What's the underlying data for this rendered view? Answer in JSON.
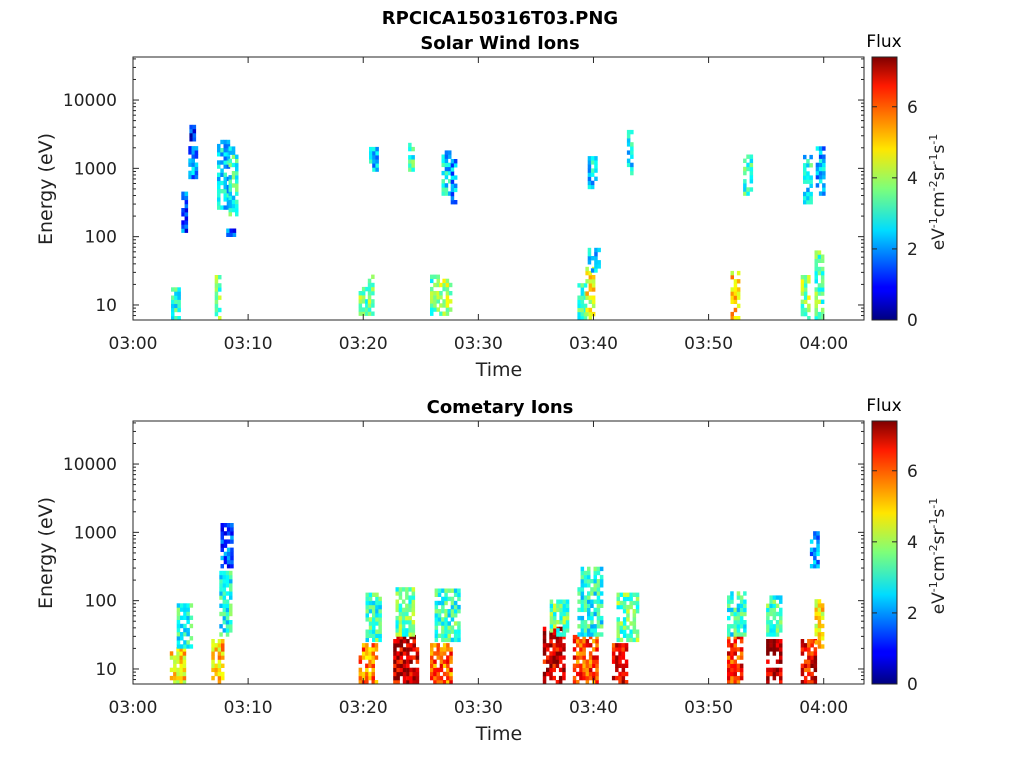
{
  "figure_title": "RPCICA150316T03.PNG",
  "colorbar": {
    "title": "Flux",
    "unit_base": "eV",
    "unit_e1": "-1",
    "unit_cm": "cm",
    "unit_e2": "-2",
    "unit_sr": "sr",
    "unit_e3": "-1",
    "unit_s": "s",
    "unit_e4": "-1",
    "range": [
      0,
      7.4
    ],
    "ticks": [
      {
        "v": 0,
        "label": "0"
      },
      {
        "v": 2,
        "label": "2"
      },
      {
        "v": 4,
        "label": "4"
      },
      {
        "v": 6,
        "label": "6"
      }
    ],
    "colormap": "jet"
  },
  "chart_data": [
    {
      "type": "heatmap",
      "title": "Solar Wind Ions",
      "xlabel": "Time",
      "ylabel": "Energy (eV)",
      "xlim_minutes": [
        0,
        63.5
      ],
      "ylim_log10": [
        0.78,
        4.63
      ],
      "yscale": "log",
      "x_ticks": [
        {
          "v": 0,
          "label": "03:00"
        },
        {
          "v": 10,
          "label": "03:10"
        },
        {
          "v": 20,
          "label": "03:20"
        },
        {
          "v": 30,
          "label": "03:30"
        },
        {
          "v": 40,
          "label": "03:40"
        },
        {
          "v": 50,
          "label": "03:50"
        },
        {
          "v": 60,
          "label": "04:00"
        }
      ],
      "y_ticks": [
        {
          "v": 10,
          "label": "10"
        },
        {
          "v": 100,
          "label": "100"
        },
        {
          "v": 1000,
          "label": "1000"
        },
        {
          "v": 10000,
          "label": "10000"
        }
      ],
      "bursts": [
        {
          "t0": 3.3,
          "t1": 4.0,
          "e_lo": 6,
          "e_hi": 18,
          "flux": 3.0
        },
        {
          "t0": 4.2,
          "t1": 4.5,
          "e_lo": 100,
          "e_hi": 500,
          "flux": 1.5
        },
        {
          "t0": 4.8,
          "t1": 5.6,
          "e_lo": 700,
          "e_hi": 2000,
          "flux": 2.0
        },
        {
          "t0": 4.9,
          "t1": 5.3,
          "e_lo": 2500,
          "e_hi": 3800,
          "flux": 1.0
        },
        {
          "t0": 7.1,
          "t1": 7.6,
          "e_lo": 6,
          "e_hi": 25,
          "flux": 3.5
        },
        {
          "t0": 7.3,
          "t1": 8.2,
          "e_lo": 250,
          "e_hi": 2500,
          "flux": 2.5
        },
        {
          "t0": 8.3,
          "t1": 8.9,
          "e_lo": 200,
          "e_hi": 2000,
          "flux": 3.0
        },
        {
          "t0": 8.1,
          "t1": 8.8,
          "e_lo": 100,
          "e_hi": 130,
          "flux": 1.5
        },
        {
          "t0": 19.6,
          "t1": 20.4,
          "e_lo": 7,
          "e_hi": 18,
          "flux": 3.5
        },
        {
          "t0": 20.4,
          "t1": 20.9,
          "e_lo": 7,
          "e_hi": 25,
          "flux": 3.8
        },
        {
          "t0": 20.5,
          "t1": 21.1,
          "e_lo": 900,
          "e_hi": 1800,
          "flux": 2.5
        },
        {
          "t0": 23.9,
          "t1": 24.3,
          "e_lo": 900,
          "e_hi": 2200,
          "flux": 3.2
        },
        {
          "t0": 25.8,
          "t1": 26.6,
          "e_lo": 7,
          "e_hi": 25,
          "flux": 3.5
        },
        {
          "t0": 26.6,
          "t1": 27.5,
          "e_lo": 7,
          "e_hi": 22,
          "flux": 4.0
        },
        {
          "t0": 26.8,
          "t1": 27.6,
          "e_lo": 400,
          "e_hi": 1800,
          "flux": 2.5
        },
        {
          "t0": 27.6,
          "t1": 28.0,
          "e_lo": 300,
          "e_hi": 1200,
          "flux": 2.0
        },
        {
          "t0": 38.6,
          "t1": 39.4,
          "e_lo": 6,
          "e_hi": 20,
          "flux": 3.2
        },
        {
          "t0": 39.3,
          "t1": 40.0,
          "e_lo": 6,
          "e_hi": 35,
          "flux": 4.5
        },
        {
          "t0": 39.5,
          "t1": 40.4,
          "e_lo": 30,
          "e_hi": 60,
          "flux": 2.5
        },
        {
          "t0": 39.5,
          "t1": 40.3,
          "e_lo": 500,
          "e_hi": 1500,
          "flux": 2.5
        },
        {
          "t0": 42.9,
          "t1": 43.4,
          "e_lo": 800,
          "e_hi": 3500,
          "flux": 2.8
        },
        {
          "t0": 51.9,
          "t1": 52.6,
          "e_lo": 6,
          "e_hi": 28,
          "flux": 4.8
        },
        {
          "t0": 53.0,
          "t1": 53.6,
          "e_lo": 400,
          "e_hi": 1500,
          "flux": 3.0
        },
        {
          "t0": 58.0,
          "t1": 58.7,
          "e_lo": 6,
          "e_hi": 25,
          "flux": 3.8
        },
        {
          "t0": 58.2,
          "t1": 59.0,
          "e_lo": 300,
          "e_hi": 1500,
          "flux": 2.8
        },
        {
          "t0": 59.2,
          "t1": 59.8,
          "e_lo": 6,
          "e_hi": 60,
          "flux": 3.5
        },
        {
          "t0": 59.3,
          "t1": 59.9,
          "e_lo": 400,
          "e_hi": 2000,
          "flux": 2.2
        }
      ]
    },
    {
      "type": "heatmap",
      "title": "Cometary Ions",
      "xlabel": "Time",
      "ylabel": "Energy (eV)",
      "xlim_minutes": [
        0,
        63.5
      ],
      "ylim_log10": [
        0.78,
        4.63
      ],
      "yscale": "log",
      "x_ticks": [
        {
          "v": 0,
          "label": "03:00"
        },
        {
          "v": 10,
          "label": "03:10"
        },
        {
          "v": 20,
          "label": "03:20"
        },
        {
          "v": 30,
          "label": "03:30"
        },
        {
          "v": 40,
          "label": "03:40"
        },
        {
          "v": 50,
          "label": "03:50"
        },
        {
          "v": 60,
          "label": "04:00"
        }
      ],
      "y_ticks": [
        {
          "v": 10,
          "label": "10"
        },
        {
          "v": 100,
          "label": "100"
        },
        {
          "v": 1000,
          "label": "1000"
        },
        {
          "v": 10000,
          "label": "10000"
        }
      ],
      "bursts": [
        {
          "t0": 3.2,
          "t1": 4.4,
          "e_lo": 6,
          "e_hi": 20,
          "flux": 4.8
        },
        {
          "t0": 3.8,
          "t1": 5.2,
          "e_lo": 20,
          "e_hi": 90,
          "flux": 3.0
        },
        {
          "t0": 6.8,
          "t1": 7.8,
          "e_lo": 6,
          "e_hi": 25,
          "flux": 5.0
        },
        {
          "t0": 7.5,
          "t1": 8.6,
          "e_lo": 30,
          "e_hi": 250,
          "flux": 3.0
        },
        {
          "t0": 7.6,
          "t1": 8.5,
          "e_lo": 300,
          "e_hi": 1300,
          "flux": 1.5
        },
        {
          "t0": 19.6,
          "t1": 21.2,
          "e_lo": 6,
          "e_hi": 22,
          "flux": 5.5
        },
        {
          "t0": 20.2,
          "t1": 21.6,
          "e_lo": 25,
          "e_hi": 120,
          "flux": 3.2
        },
        {
          "t0": 22.6,
          "t1": 24.6,
          "e_lo": 6,
          "e_hi": 30,
          "flux": 6.8
        },
        {
          "t0": 22.8,
          "t1": 24.4,
          "e_lo": 30,
          "e_hi": 150,
          "flux": 3.5
        },
        {
          "t0": 25.8,
          "t1": 27.6,
          "e_lo": 6,
          "e_hi": 22,
          "flux": 5.8
        },
        {
          "t0": 26.2,
          "t1": 28.2,
          "e_lo": 25,
          "e_hi": 140,
          "flux": 3.2
        },
        {
          "t0": 35.6,
          "t1": 37.4,
          "e_lo": 6,
          "e_hi": 40,
          "flux": 6.8
        },
        {
          "t0": 36.2,
          "t1": 37.8,
          "e_lo": 30,
          "e_hi": 100,
          "flux": 3.5
        },
        {
          "t0": 38.2,
          "t1": 40.2,
          "e_lo": 6,
          "e_hi": 30,
          "flux": 6.0
        },
        {
          "t0": 38.6,
          "t1": 40.8,
          "e_lo": 30,
          "e_hi": 300,
          "flux": 3.0
        },
        {
          "t0": 41.6,
          "t1": 42.9,
          "e_lo": 6,
          "e_hi": 22,
          "flux": 6.5
        },
        {
          "t0": 42.0,
          "t1": 43.8,
          "e_lo": 25,
          "e_hi": 130,
          "flux": 3.5
        },
        {
          "t0": 51.6,
          "t1": 52.9,
          "e_lo": 6,
          "e_hi": 28,
          "flux": 6.2
        },
        {
          "t0": 51.6,
          "t1": 53.2,
          "e_lo": 30,
          "e_hi": 120,
          "flux": 3.0
        },
        {
          "t0": 55.0,
          "t1": 56.2,
          "e_lo": 6,
          "e_hi": 25,
          "flux": 7.0
        },
        {
          "t0": 55.0,
          "t1": 56.4,
          "e_lo": 30,
          "e_hi": 110,
          "flux": 3.2
        },
        {
          "t0": 58.0,
          "t1": 59.2,
          "e_lo": 6,
          "e_hi": 25,
          "flux": 6.5
        },
        {
          "t0": 59.2,
          "t1": 59.8,
          "e_lo": 20,
          "e_hi": 100,
          "flux": 4.8
        },
        {
          "t0": 58.8,
          "t1": 59.6,
          "e_lo": 300,
          "e_hi": 1000,
          "flux": 2.0
        }
      ]
    }
  ]
}
